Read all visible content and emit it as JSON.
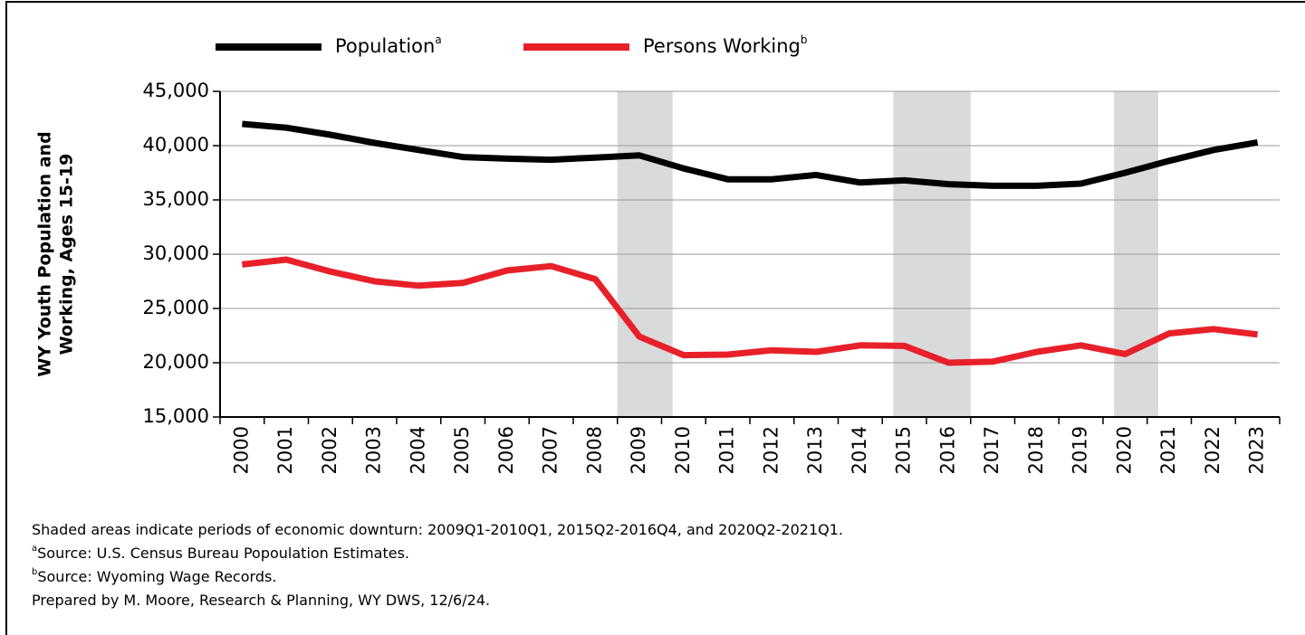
{
  "chart_data": {
    "type": "line",
    "y_axis_label": [
      "WY Youth Population and",
      "Working, Ages 15-19"
    ],
    "categories": [
      "2000",
      "2001",
      "2002",
      "2003",
      "2004",
      "2005",
      "2006",
      "2007",
      "2008",
      "2009",
      "2010",
      "2011",
      "2012",
      "2013",
      "2014",
      "2015",
      "2016",
      "2017",
      "2018",
      "2019",
      "2020",
      "2021",
      "2022",
      "2023"
    ],
    "series": [
      {
        "name": "Population",
        "note": "a",
        "color": "#000000",
        "values": [
          42000,
          41650,
          41000,
          40250,
          39600,
          38950,
          38800,
          38700,
          38900,
          39100,
          37900,
          36900,
          36900,
          37300,
          36600,
          36800,
          36450,
          36300,
          36300,
          36500,
          37500,
          38600,
          39600,
          40300
        ]
      },
      {
        "name": "Persons Working",
        "note": "b",
        "color": "#e8202a",
        "values": [
          29050,
          29500,
          28400,
          27500,
          27100,
          27350,
          28500,
          28900,
          27700,
          22400,
          20700,
          20750,
          21150,
          21000,
          21600,
          21550,
          20000,
          20100,
          21000,
          21600,
          20800,
          22700,
          23100,
          22600
        ]
      }
    ],
    "shaded": [
      [
        2009,
        2010.25
      ],
      [
        2015.25,
        2017
      ],
      [
        2020.25,
        2021.25
      ]
    ],
    "shade_color": "#d9dadb",
    "ylim": [
      15000,
      45000
    ],
    "yticks": [
      {
        "value": 15000,
        "label": "15,000"
      },
      {
        "value": 20000,
        "label": "20,000"
      },
      {
        "value": 25000,
        "label": "25,000"
      },
      {
        "value": 30000,
        "label": "30,000"
      },
      {
        "value": 35000,
        "label": "35,000"
      },
      {
        "value": 40000,
        "label": "40,000"
      },
      {
        "value": 45000,
        "label": "45,000"
      }
    ],
    "grid": true,
    "notes": [
      {
        "text": "Shaded areas indicate periods of economic downturn: 2009Q1-2010Q1, 2015Q2-2016Q4, and 2020Q2-2021Q1."
      },
      {
        "sup": "a",
        "text": "Source: U.S. Census Bureau Popoulation Estimates."
      },
      {
        "sup": "b",
        "text": "Source: Wyoming Wage Records."
      },
      {
        "text": "Prepared by M. Moore, Research & Planning, WY DWS, 12/6/24."
      }
    ]
  }
}
